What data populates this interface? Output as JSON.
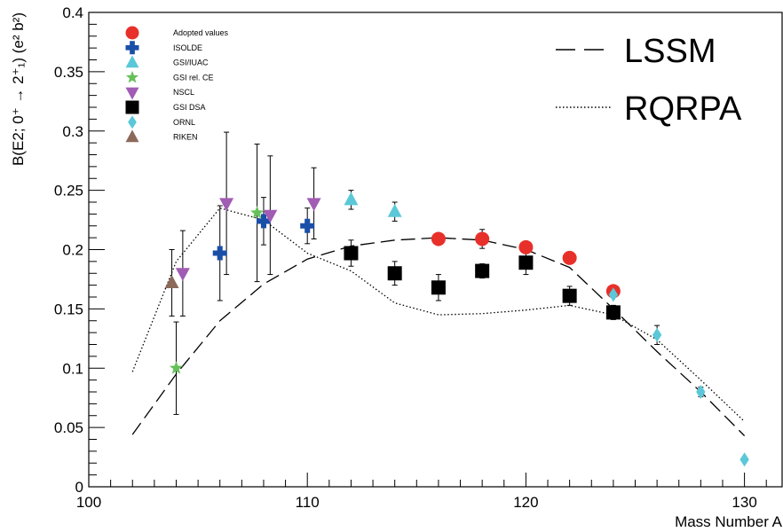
{
  "chart_data": {
    "type": "scatter",
    "xlabel": "Mass Number A",
    "ylabel": "B(E2; 0⁺ → 2⁺₁) (e² b²)",
    "xlim": [
      100,
      132
    ],
    "ylim": [
      0,
      0.4
    ],
    "x_ticks": [
      "100",
      "110",
      "120",
      "130"
    ],
    "y_ticks": [
      "0",
      "0.05",
      "0.1",
      "0.15",
      "0.2",
      "0.25",
      "0.3",
      "0.35",
      "0.4"
    ],
    "grid": false,
    "legend_placement": "top-left",
    "series": [
      {
        "name": "Adopted values",
        "marker": "circle",
        "color": "#e8302a",
        "points": [
          {
            "x": 116,
            "y": 0.209,
            "err": 0.003
          },
          {
            "x": 118,
            "y": 0.209,
            "err": 0.008
          },
          {
            "x": 120,
            "y": 0.202,
            "err": 0.004
          },
          {
            "x": 122,
            "y": 0.193,
            "err": 0.0
          },
          {
            "x": 124,
            "y": 0.165,
            "err": 0.003
          }
        ]
      },
      {
        "name": "ISOLDE",
        "marker": "cross",
        "color": "#1a4fa8",
        "points": [
          {
            "x": 106,
            "y": 0.197,
            "err": 0.04
          },
          {
            "x": 108,
            "y": 0.224,
            "err": 0.02
          },
          {
            "x": 110,
            "y": 0.22,
            "err": 0.015
          }
        ]
      },
      {
        "name": "GSI/IUAC",
        "marker": "triangle-up",
        "color": "#5bc8d8",
        "points": [
          {
            "x": 112,
            "y": 0.242,
            "err": 0.008
          },
          {
            "x": 114,
            "y": 0.232,
            "err": 0.008
          }
        ]
      },
      {
        "name": "GSI rel. CE",
        "marker": "star",
        "color": "#66c05a",
        "points": [
          {
            "x": 104,
            "y": 0.1,
            "err": 0.039
          },
          {
            "x": 107.7,
            "y": 0.231,
            "err": 0.058
          }
        ]
      },
      {
        "name": "NSCL",
        "marker": "triangle-down",
        "color": "#a15cb4",
        "points": [
          {
            "x": 104.3,
            "y": 0.18,
            "err": 0.036
          },
          {
            "x": 106.3,
            "y": 0.239,
            "err": 0.06
          },
          {
            "x": 108.3,
            "y": 0.229,
            "err": 0.05
          },
          {
            "x": 110.3,
            "y": 0.239,
            "err": 0.03
          }
        ]
      },
      {
        "name": "GSI DSA",
        "marker": "square",
        "color": "#000000",
        "points": [
          {
            "x": 112,
            "y": 0.197,
            "err": 0.011
          },
          {
            "x": 114,
            "y": 0.18,
            "err": 0.01
          },
          {
            "x": 116,
            "y": 0.168,
            "err": 0.011
          },
          {
            "x": 118,
            "y": 0.182,
            "err": 0.006
          },
          {
            "x": 120,
            "y": 0.189,
            "err": 0.01
          },
          {
            "x": 122,
            "y": 0.161,
            "err": 0.008
          },
          {
            "x": 124,
            "y": 0.147,
            "err": 0.006
          }
        ]
      },
      {
        "name": "ORNL",
        "marker": "diamond",
        "color": "#5bc8d8",
        "points": [
          {
            "x": 124,
            "y": 0.162,
            "err": 0.0
          },
          {
            "x": 126,
            "y": 0.128,
            "err": 0.008
          },
          {
            "x": 128,
            "y": 0.08,
            "err": 0.004
          },
          {
            "x": 130,
            "y": 0.023,
            "err": 0.0
          }
        ]
      },
      {
        "name": "RIKEN",
        "marker": "triangle-up",
        "color": "#8c6a5a",
        "points": [
          {
            "x": 103.8,
            "y": 0.172,
            "err": 0.028
          }
        ]
      }
    ],
    "curves": [
      {
        "name": "LSSM",
        "style": "dashed",
        "points": [
          [
            102,
            0.044
          ],
          [
            104,
            0.095
          ],
          [
            106,
            0.14
          ],
          [
            108,
            0.171
          ],
          [
            110,
            0.192
          ],
          [
            112,
            0.203
          ],
          [
            114,
            0.208
          ],
          [
            116,
            0.21
          ],
          [
            118,
            0.208
          ],
          [
            120,
            0.2
          ],
          [
            122,
            0.185
          ],
          [
            124,
            0.15
          ],
          [
            126,
            0.114
          ],
          [
            128,
            0.08
          ],
          [
            130,
            0.043
          ]
        ]
      },
      {
        "name": "RQRPA",
        "style": "dotted",
        "points": [
          [
            102,
            0.097
          ],
          [
            104,
            0.19
          ],
          [
            106,
            0.235
          ],
          [
            108,
            0.225
          ],
          [
            110,
            0.197
          ],
          [
            112,
            0.182
          ],
          [
            114,
            0.155
          ],
          [
            116,
            0.145
          ],
          [
            118,
            0.146
          ],
          [
            120,
            0.149
          ],
          [
            122,
            0.153
          ],
          [
            124,
            0.145
          ],
          [
            126,
            0.124
          ],
          [
            128,
            0.09
          ],
          [
            130,
            0.055
          ]
        ]
      }
    ]
  }
}
